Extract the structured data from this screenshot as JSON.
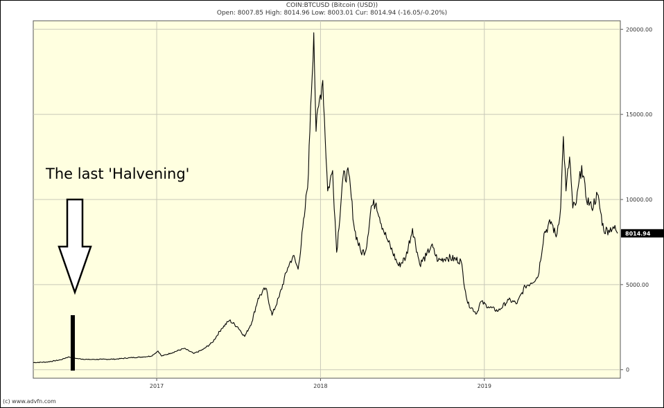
{
  "header": {
    "title": "COIN:BTCUSD (Bitcoin (USD))",
    "ohlc": "Open: 8007.85 High: 8014.96 Low: 8003.01 Cur: 8014.94 (-16.05/-0.20%)"
  },
  "footer": {
    "credit": "(c) www.advfn.com"
  },
  "annotation": {
    "text": "The last 'Halvening'",
    "event_date": "2016-07-09"
  },
  "chart_data": {
    "type": "line",
    "title": "COIN:BTCUSD (Bitcoin (USD))",
    "xlabel": "",
    "ylabel": "",
    "xlim": [
      "2016-04-01",
      "2019-10-31"
    ],
    "ylim": [
      -500,
      20500
    ],
    "x_ticks": [
      {
        "date": "2017-01-01",
        "label": "2017"
      },
      {
        "date": "2018-01-01",
        "label": "2018"
      },
      {
        "date": "2019-01-01",
        "label": "2019"
      }
    ],
    "y_ticks": [
      {
        "value": 0,
        "label": "0"
      },
      {
        "value": 5000,
        "label": "5000.00"
      },
      {
        "value": 10000,
        "label": "10000.00"
      },
      {
        "value": 15000,
        "label": "15000.00"
      },
      {
        "value": 20000,
        "label": "20000.00"
      }
    ],
    "current": {
      "value": 8014.94,
      "label": "8014.94"
    },
    "grid": true,
    "colors": {
      "background": "#ffffe0",
      "line": "#000000",
      "grid": "#c8c8b8",
      "current_box": "#000000"
    },
    "series": [
      {
        "values": [
          [
            "2016-04-01",
            420
          ],
          [
            "2016-05-01",
            450
          ],
          [
            "2016-06-01",
            580
          ],
          [
            "2016-06-18",
            750
          ],
          [
            "2016-07-09",
            650
          ],
          [
            "2016-08-01",
            600
          ],
          [
            "2016-09-01",
            610
          ],
          [
            "2016-10-01",
            620
          ],
          [
            "2016-11-01",
            700
          ],
          [
            "2016-12-01",
            750
          ],
          [
            "2016-12-20",
            800
          ],
          [
            "2017-01-04",
            1100
          ],
          [
            "2017-01-12",
            800
          ],
          [
            "2017-02-01",
            970
          ],
          [
            "2017-03-03",
            1250
          ],
          [
            "2017-03-25",
            950
          ],
          [
            "2017-04-15",
            1200
          ],
          [
            "2017-05-05",
            1600
          ],
          [
            "2017-05-25",
            2400
          ],
          [
            "2017-06-12",
            2900
          ],
          [
            "2017-07-01",
            2500
          ],
          [
            "2017-07-16",
            1950
          ],
          [
            "2017-08-01",
            2800
          ],
          [
            "2017-08-15",
            4200
          ],
          [
            "2017-09-01",
            4800
          ],
          [
            "2017-09-15",
            3200
          ],
          [
            "2017-10-01",
            4300
          ],
          [
            "2017-10-20",
            6000
          ],
          [
            "2017-11-01",
            6700
          ],
          [
            "2017-11-12",
            5900
          ],
          [
            "2017-11-26",
            9000
          ],
          [
            "2017-12-05",
            11500
          ],
          [
            "2017-12-10",
            15500
          ],
          [
            "2017-12-17",
            19800
          ],
          [
            "2017-12-22",
            14000
          ],
          [
            "2017-12-28",
            15500
          ],
          [
            "2018-01-06",
            17000
          ],
          [
            "2018-01-17",
            10500
          ],
          [
            "2018-01-28",
            11700
          ],
          [
            "2018-02-06",
            6900
          ],
          [
            "2018-02-20",
            11300
          ],
          [
            "2018-03-05",
            11500
          ],
          [
            "2018-03-18",
            8200
          ],
          [
            "2018-04-01",
            6900
          ],
          [
            "2018-04-12",
            7000
          ],
          [
            "2018-04-24",
            9600
          ],
          [
            "2018-05-05",
            9800
          ],
          [
            "2018-05-20",
            8300
          ],
          [
            "2018-06-01",
            7500
          ],
          [
            "2018-06-24",
            6100
          ],
          [
            "2018-07-10",
            6600
          ],
          [
            "2018-07-25",
            8300
          ],
          [
            "2018-08-10",
            6200
          ],
          [
            "2018-08-25",
            6700
          ],
          [
            "2018-09-05",
            7300
          ],
          [
            "2018-09-20",
            6400
          ],
          [
            "2018-10-10",
            6600
          ],
          [
            "2018-11-10",
            6400
          ],
          [
            "2018-11-20",
            4600
          ],
          [
            "2018-11-25",
            3900
          ],
          [
            "2018-12-15",
            3300
          ],
          [
            "2018-12-24",
            4000
          ],
          [
            "2019-01-10",
            3700
          ],
          [
            "2019-02-01",
            3450
          ],
          [
            "2019-02-24",
            4100
          ],
          [
            "2019-03-15",
            3900
          ],
          [
            "2019-04-02",
            4900
          ],
          [
            "2019-04-15",
            5100
          ],
          [
            "2019-05-01",
            5500
          ],
          [
            "2019-05-14",
            8000
          ],
          [
            "2019-05-30",
            8700
          ],
          [
            "2019-06-10",
            7800
          ],
          [
            "2019-06-20",
            9500
          ],
          [
            "2019-06-26",
            13700
          ],
          [
            "2019-07-02",
            10500
          ],
          [
            "2019-07-10",
            12500
          ],
          [
            "2019-07-17",
            9500
          ],
          [
            "2019-07-25",
            9800
          ],
          [
            "2019-08-06",
            12000
          ],
          [
            "2019-08-15",
            10200
          ],
          [
            "2019-08-28",
            9500
          ],
          [
            "2019-09-10",
            10300
          ],
          [
            "2019-09-24",
            8200
          ],
          [
            "2019-10-05",
            8200
          ],
          [
            "2019-10-15",
            8400
          ],
          [
            "2019-10-25",
            8015
          ]
        ]
      }
    ]
  }
}
